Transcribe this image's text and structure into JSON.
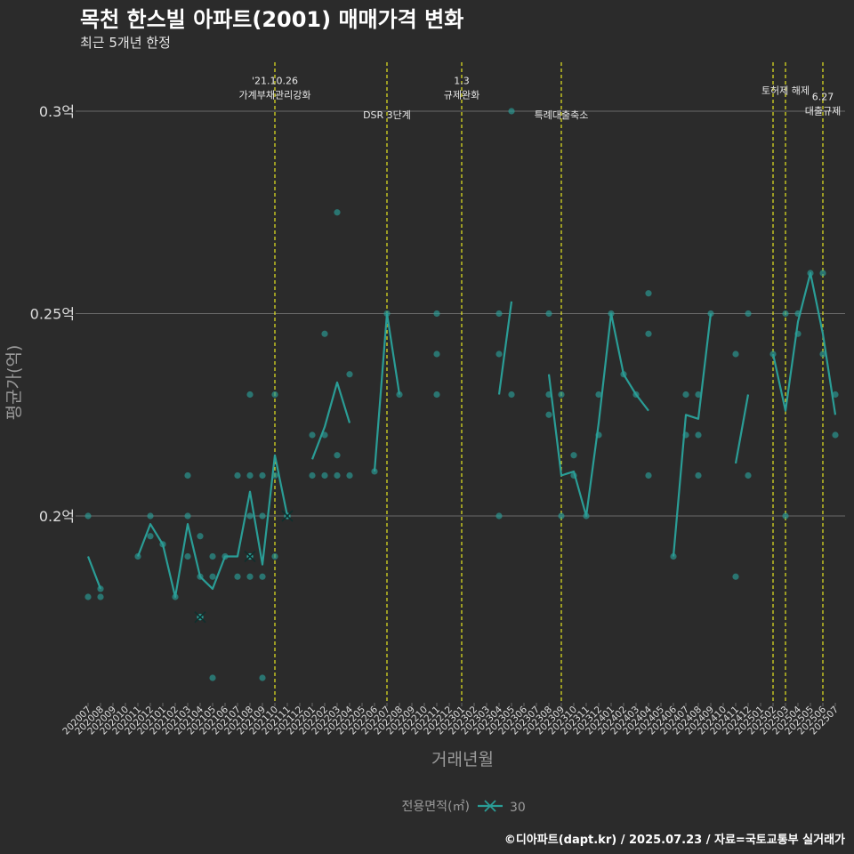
{
  "header": {
    "title": "목천 한스빌 아파트(2001) 매매가격 변화",
    "subtitle": "최근 5개년 한정"
  },
  "caption": "©디아파트(dapt.kr) / 2025.07.23 / 자료=국토교통부 실거래가",
  "colors": {
    "background": "#2b2b2b",
    "series": "#2a9d96",
    "event_line": "#e6e620",
    "grid": "#6a6a6a",
    "text": "#dddddd"
  },
  "chart_data": {
    "type": "line",
    "xlabel": "거래년월",
    "ylabel": "평균가(억)",
    "x_categories": [
      "202007",
      "202008",
      "202009",
      "202010",
      "202011",
      "202012",
      "202101",
      "202102",
      "202103",
      "202104",
      "202105",
      "202106",
      "202107",
      "202108",
      "202109",
      "202110",
      "202111",
      "202112",
      "202201",
      "202202",
      "202203",
      "202204",
      "202205",
      "202206",
      "202207",
      "202208",
      "202209",
      "202210",
      "202211",
      "202212",
      "202301",
      "202302",
      "202303",
      "202304",
      "202305",
      "202306",
      "202307",
      "202308",
      "202309",
      "202310",
      "202311",
      "202312",
      "202401",
      "202402",
      "202403",
      "202404",
      "202405",
      "202406",
      "202407",
      "202408",
      "202409",
      "202410",
      "202411",
      "202412",
      "202501",
      "202502",
      "202503",
      "202504",
      "202505",
      "202506",
      "202507"
    ],
    "ylim": [
      0.15,
      0.315
    ],
    "y_ticks": [
      0.2,
      0.25,
      0.3
    ],
    "y_tick_labels": [
      "0.2억",
      "0.25억",
      "0.3억"
    ],
    "grid": true,
    "legend": {
      "title": "전용면적(㎡)",
      "entries": [
        "30"
      ],
      "position": "bottom"
    },
    "series": [
      {
        "name": "30",
        "line_segments": [
          [
            [
              "202007",
              0.19
            ],
            [
              "202008",
              0.182
            ]
          ],
          [
            [
              "202011",
              0.19
            ],
            [
              "202012",
              0.198
            ],
            [
              "202101",
              0.193
            ],
            [
              "202102",
              0.18
            ],
            [
              "202103",
              0.198
            ],
            [
              "202104",
              0.185
            ],
            [
              "202105",
              0.182
            ],
            [
              "202106",
              0.19
            ],
            [
              "202107",
              0.19
            ],
            [
              "202108",
              0.206
            ],
            [
              "202109",
              0.188
            ],
            [
              "202110",
              0.215
            ],
            [
              "202111",
              0.2
            ]
          ],
          [
            [
              "202201",
              0.214
            ],
            [
              "202202",
              0.222
            ],
            [
              "202203",
              0.233
            ],
            [
              "202204",
              0.223
            ]
          ],
          [
            [
              "202206",
              0.211
            ],
            [
              "202207",
              0.25
            ],
            [
              "202208",
              0.23
            ]
          ],
          [
            [
              "202304",
              0.23
            ],
            [
              "202305",
              0.253
            ]
          ],
          [
            [
              "202308",
              0.235
            ],
            [
              "202309",
              0.21
            ],
            [
              "202310",
              0.211
            ],
            [
              "202311",
              0.2
            ],
            [
              "202312",
              0.223
            ],
            [
              "202401",
              0.25
            ],
            [
              "202402",
              0.235
            ],
            [
              "202403",
              0.23
            ],
            [
              "202404",
              0.226
            ]
          ],
          [
            [
              "202406",
              0.19
            ],
            [
              "202407",
              0.225
            ],
            [
              "202408",
              0.224
            ],
            [
              "202409",
              0.25
            ]
          ],
          [
            [
              "202411",
              0.213
            ],
            [
              "202412",
              0.23
            ]
          ],
          [
            [
              "202502",
              0.24
            ],
            [
              "202503",
              0.226
            ],
            [
              "202504",
              0.248
            ],
            [
              "202505",
              0.26
            ],
            [
              "202506",
              0.245
            ],
            [
              "202507",
              0.225
            ]
          ]
        ],
        "points": [
          [
            "202007",
            0.2
          ],
          [
            "202007",
            0.18
          ],
          [
            "202008",
            0.182
          ],
          [
            "202008",
            0.18
          ],
          [
            "202011",
            0.19
          ],
          [
            "202012",
            0.2
          ],
          [
            "202012",
            0.195
          ],
          [
            "202101",
            0.193
          ],
          [
            "202102",
            0.18
          ],
          [
            "202103",
            0.21
          ],
          [
            "202103",
            0.2
          ],
          [
            "202103",
            0.19
          ],
          [
            "202104",
            0.195
          ],
          [
            "202104",
            0.185
          ],
          [
            "202104",
            0.175
          ],
          [
            "202105",
            0.19
          ],
          [
            "202105",
            0.185
          ],
          [
            "202105",
            0.16
          ],
          [
            "202106",
            0.19
          ],
          [
            "202107",
            0.21
          ],
          [
            "202107",
            0.185
          ],
          [
            "202108",
            0.23
          ],
          [
            "202108",
            0.21
          ],
          [
            "202108",
            0.2
          ],
          [
            "202108",
            0.19
          ],
          [
            "202108",
            0.185
          ],
          [
            "202109",
            0.21
          ],
          [
            "202109",
            0.2
          ],
          [
            "202109",
            0.185
          ],
          [
            "202109",
            0.16
          ],
          [
            "202110",
            0.23
          ],
          [
            "202110",
            0.21
          ],
          [
            "202110",
            0.19
          ],
          [
            "202111",
            0.2
          ],
          [
            "202201",
            0.22
          ],
          [
            "202201",
            0.21
          ],
          [
            "202202",
            0.245
          ],
          [
            "202202",
            0.22
          ],
          [
            "202202",
            0.21
          ],
          [
            "202203",
            0.275
          ],
          [
            "202203",
            0.215
          ],
          [
            "202203",
            0.21
          ],
          [
            "202204",
            0.235
          ],
          [
            "202204",
            0.21
          ],
          [
            "202206",
            0.211
          ],
          [
            "202207",
            0.25
          ],
          [
            "202208",
            0.23
          ],
          [
            "202211",
            0.25
          ],
          [
            "202211",
            0.24
          ],
          [
            "202211",
            0.23
          ],
          [
            "202304",
            0.25
          ],
          [
            "202304",
            0.24
          ],
          [
            "202304",
            0.2
          ],
          [
            "202305",
            0.3
          ],
          [
            "202305",
            0.23
          ],
          [
            "202308",
            0.25
          ],
          [
            "202308",
            0.23
          ],
          [
            "202308",
            0.225
          ],
          [
            "202309",
            0.23
          ],
          [
            "202309",
            0.2
          ],
          [
            "202310",
            0.215
          ],
          [
            "202310",
            0.21
          ],
          [
            "202311",
            0.2
          ],
          [
            "202312",
            0.23
          ],
          [
            "202312",
            0.22
          ],
          [
            "202401",
            0.25
          ],
          [
            "202402",
            0.235
          ],
          [
            "202403",
            0.23
          ],
          [
            "202404",
            0.255
          ],
          [
            "202404",
            0.245
          ],
          [
            "202404",
            0.21
          ],
          [
            "202406",
            0.19
          ],
          [
            "202407",
            0.23
          ],
          [
            "202407",
            0.22
          ],
          [
            "202408",
            0.23
          ],
          [
            "202408",
            0.22
          ],
          [
            "202408",
            0.21
          ],
          [
            "202409",
            0.25
          ],
          [
            "202411",
            0.24
          ],
          [
            "202411",
            0.185
          ],
          [
            "202412",
            0.25
          ],
          [
            "202412",
            0.21
          ],
          [
            "202502",
            0.24
          ],
          [
            "202503",
            0.25
          ],
          [
            "202503",
            0.2
          ],
          [
            "202504",
            0.25
          ],
          [
            "202504",
            0.245
          ],
          [
            "202505",
            0.26
          ],
          [
            "202506",
            0.26
          ],
          [
            "202506",
            0.24
          ],
          [
            "202507",
            0.23
          ],
          [
            "202507",
            0.22
          ]
        ],
        "x_markers": [
          [
            "202104",
            0.175
          ],
          [
            "202108",
            0.19
          ],
          [
            "202111",
            0.2
          ]
        ]
      }
    ],
    "events": [
      {
        "x": "202110",
        "line1": "'21.10.26",
        "line2": "가계부채관리강화",
        "y": 0.305
      },
      {
        "x": "202207",
        "line1": "",
        "line2": "DSR 3단계",
        "y": 0.3
      },
      {
        "x": "202301",
        "line1": "1.3",
        "line2": "규제완화",
        "y": 0.305
      },
      {
        "x": "202309",
        "line1": "",
        "line2": "특례대출축소",
        "y": 0.3
      },
      {
        "x": "202502",
        "line1": "",
        "line2": "",
        "y": 0.3
      },
      {
        "x": "202503",
        "line1": "",
        "line2": "토허제 해제",
        "y": 0.306
      },
      {
        "x": "202506",
        "line1": "6.27",
        "line2": "대출규제",
        "y": 0.301
      }
    ]
  }
}
